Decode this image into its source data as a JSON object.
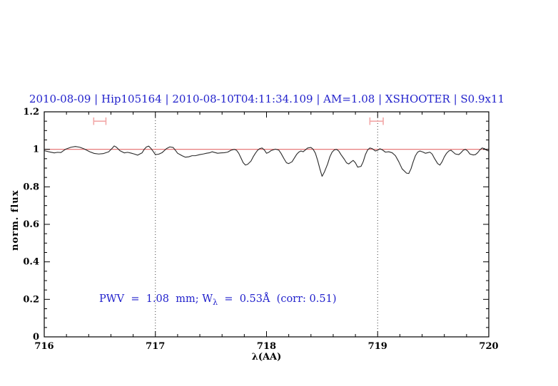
{
  "chart_data": {
    "type": "line",
    "title": "2010-08-09 | Hip105164 | 2010-08-10T04:11:34.109 | AM=1.08 | XSHOOTER | S0.9x11",
    "xlabel": "λ(AA)",
    "ylabel": "norm. flux",
    "xlim": [
      716,
      720
    ],
    "ylim": [
      0,
      1.2
    ],
    "xticks": [
      716,
      717,
      718,
      719,
      720
    ],
    "xtick_labels": [
      "716",
      "717",
      "718",
      "719",
      "720"
    ],
    "yticks": [
      0,
      0.2,
      0.4,
      0.6,
      0.8,
      1,
      1.2
    ],
    "ytick_labels": [
      "0",
      "0.2",
      "0.4",
      "0.6",
      "0.8",
      "1",
      "1.2"
    ],
    "x_minor_step": 0.2,
    "y_minor_step": 0.05,
    "grid": false,
    "legend": null,
    "dotted_vlines": [
      717,
      719
    ],
    "continuum_level": 1.0,
    "range_markers": [
      {
        "x_center": 716.5,
        "half_width": 0.055,
        "y": 1.15,
        "cap_half_height": 0.02
      },
      {
        "x_center": 718.99,
        "half_width": 0.06,
        "y": 1.15,
        "cap_half_height": 0.02
      }
    ],
    "annotation": {
      "full_text": "PWV = 1.08 mm; W_λ = 0.53Å (corr: 0.51)",
      "text_before_subscript": "PWV  =  1.08  mm; W",
      "subscript": "λ",
      "text_after_subscript": "  =  0.53Å  (corr: 0.51)",
      "position": {
        "x": 716.5,
        "flux": 0.2
      }
    },
    "colors": {
      "accent_blue": "#2222cc",
      "continuum": "#e46a6a",
      "marker": "#f2a8a8",
      "spectrum": "#2a2a2a",
      "dotted": "#3a3a3a",
      "axis": "#000000"
    },
    "series": [
      {
        "name": "observed-spectrum",
        "x": [
          716.0,
          716.04,
          716.09,
          716.12,
          716.15,
          716.19,
          716.24,
          716.28,
          716.32,
          716.36,
          716.41,
          716.45,
          716.49,
          716.53,
          716.58,
          716.61,
          716.63,
          716.65,
          716.68,
          716.72,
          716.75,
          716.78,
          716.81,
          716.84,
          716.88,
          716.9,
          716.92,
          716.94,
          716.96,
          716.98,
          717.0,
          717.03,
          717.06,
          717.1,
          717.13,
          717.16,
          717.18,
          717.2,
          717.24,
          717.27,
          717.3,
          717.33,
          717.36,
          717.4,
          717.43,
          717.46,
          717.49,
          717.51,
          717.56,
          717.59,
          717.62,
          717.65,
          717.68,
          717.71,
          717.73,
          717.75,
          717.77,
          717.79,
          717.81,
          717.83,
          717.86,
          717.88,
          717.9,
          717.92,
          717.94,
          717.96,
          717.98,
          718.0,
          718.02,
          718.04,
          718.08,
          718.11,
          718.13,
          718.16,
          718.18,
          718.2,
          718.23,
          718.25,
          718.27,
          718.29,
          718.31,
          718.33,
          718.35,
          718.37,
          718.4,
          718.42,
          718.44,
          718.46,
          718.48,
          718.5,
          718.52,
          718.55,
          718.57,
          718.59,
          718.61,
          718.63,
          718.65,
          718.67,
          718.7,
          718.72,
          718.74,
          718.76,
          718.78,
          718.8,
          718.82,
          718.85,
          718.87,
          718.89,
          718.91,
          718.93,
          718.95,
          718.98,
          719.0,
          719.02,
          719.04,
          719.07,
          719.1,
          719.13,
          719.16,
          719.19,
          719.22,
          719.26,
          719.28,
          719.3,
          719.32,
          719.34,
          719.36,
          719.38,
          719.41,
          719.43,
          719.45,
          719.47,
          719.49,
          719.51,
          719.54,
          719.56,
          719.58,
          719.6,
          719.62,
          719.64,
          719.66,
          719.68,
          719.7,
          719.73,
          719.75,
          719.77,
          719.79,
          719.81,
          719.83,
          719.86,
          719.88,
          719.9,
          719.92,
          719.94,
          719.96,
          719.98,
          720.0
        ],
        "y": [
          0.993,
          0.987,
          0.981,
          0.984,
          0.983,
          1.0,
          1.011,
          1.015,
          1.011,
          1.002,
          0.987,
          0.978,
          0.975,
          0.977,
          0.987,
          1.005,
          1.018,
          1.011,
          0.993,
          0.981,
          0.984,
          0.98,
          0.975,
          0.969,
          0.981,
          1.0,
          1.013,
          1.017,
          1.005,
          0.989,
          0.972,
          0.974,
          0.982,
          1.004,
          1.013,
          1.01,
          0.995,
          0.979,
          0.966,
          0.958,
          0.96,
          0.966,
          0.966,
          0.972,
          0.975,
          0.979,
          0.982,
          0.987,
          0.979,
          0.981,
          0.982,
          0.985,
          0.995,
          1.0,
          0.995,
          0.979,
          0.954,
          0.929,
          0.916,
          0.92,
          0.937,
          0.96,
          0.979,
          0.995,
          1.004,
          1.007,
          0.997,
          0.979,
          0.984,
          0.993,
          1.001,
          0.996,
          0.979,
          0.947,
          0.928,
          0.924,
          0.934,
          0.953,
          0.972,
          0.985,
          0.991,
          0.987,
          0.997,
          1.007,
          1.01,
          1.0,
          0.979,
          0.941,
          0.896,
          0.856,
          0.878,
          0.922,
          0.96,
          0.985,
          0.997,
          1.0,
          0.991,
          0.972,
          0.947,
          0.928,
          0.922,
          0.932,
          0.941,
          0.928,
          0.905,
          0.909,
          0.934,
          0.972,
          0.997,
          1.007,
          1.004,
          0.991,
          0.995,
          1.003,
          0.998,
          0.985,
          0.987,
          0.982,
          0.966,
          0.934,
          0.896,
          0.873,
          0.871,
          0.896,
          0.934,
          0.966,
          0.985,
          0.991,
          0.985,
          0.979,
          0.982,
          0.985,
          0.975,
          0.953,
          0.924,
          0.916,
          0.934,
          0.96,
          0.979,
          0.991,
          0.995,
          0.985,
          0.975,
          0.972,
          0.982,
          0.995,
          1.0,
          0.991,
          0.975,
          0.97,
          0.972,
          0.982,
          0.997,
          1.007,
          1.004,
          0.995,
          0.991
        ]
      }
    ]
  }
}
